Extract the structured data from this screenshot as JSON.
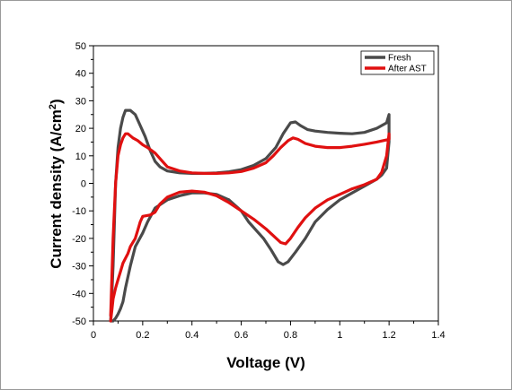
{
  "chart_data": {
    "type": "line",
    "title": "",
    "xlabel": "Voltage (V)",
    "ylabel_main": "Current density (A/cm",
    "ylabel_sup": "2",
    "ylabel_close": ")",
    "xlim": [
      0,
      1.4
    ],
    "ylim": [
      -50,
      50
    ],
    "x_ticks": [
      "0",
      "0.2",
      "0.4",
      "0.6",
      "0.8",
      "1",
      "1.2",
      "1.4"
    ],
    "x_tick_values": [
      0,
      0.2,
      0.4,
      0.6,
      0.8,
      1.0,
      1.2,
      1.4
    ],
    "y_ticks": [
      "50",
      "40",
      "30",
      "20",
      "10",
      "0",
      "-10",
      "-20",
      "-30",
      "-40",
      "-50"
    ],
    "y_tick_values": [
      50,
      40,
      30,
      20,
      10,
      0,
      -10,
      -20,
      -30,
      -40,
      -50
    ],
    "grid": false,
    "legend_position": "top-right",
    "series": [
      {
        "name": "Fresh",
        "color": "#4a4a4a",
        "x": [
          0.07,
          0.08,
          0.09,
          0.1,
          0.11,
          0.12,
          0.13,
          0.15,
          0.17,
          0.19,
          0.21,
          0.23,
          0.25,
          0.27,
          0.3,
          0.35,
          0.4,
          0.45,
          0.5,
          0.55,
          0.6,
          0.65,
          0.7,
          0.74,
          0.77,
          0.8,
          0.82,
          0.84,
          0.87,
          0.9,
          0.95,
          1.0,
          1.05,
          1.1,
          1.15,
          1.19,
          1.2,
          1.2,
          1.19,
          1.17,
          1.15,
          1.1,
          1.05,
          1.0,
          0.95,
          0.9,
          0.86,
          0.82,
          0.79,
          0.77,
          0.75,
          0.72,
          0.69,
          0.66,
          0.63,
          0.6,
          0.55,
          0.5,
          0.45,
          0.4,
          0.35,
          0.3,
          0.25,
          0.22,
          0.2,
          0.17,
          0.15,
          0.13,
          0.12,
          0.11,
          0.1,
          0.09,
          0.08,
          0.075,
          0.07
        ],
        "y": [
          -50,
          -30,
          0,
          13,
          20,
          24,
          26.5,
          26.5,
          25,
          21,
          17,
          12,
          8,
          6,
          4.5,
          3.8,
          3.6,
          3.6,
          3.8,
          4.2,
          5,
          6.5,
          9,
          13,
          18,
          22,
          22.3,
          21,
          19.5,
          19,
          18.5,
          18.2,
          18,
          18.5,
          20,
          22,
          25,
          15,
          5.5,
          3,
          1.5,
          -1,
          -3.5,
          -6,
          -9.5,
          -14,
          -20,
          -25,
          -28.5,
          -29.5,
          -28.5,
          -24,
          -20,
          -17,
          -14,
          -10,
          -6,
          -4,
          -3.5,
          -3.5,
          -4.5,
          -6,
          -9,
          -14,
          -18,
          -23,
          -30,
          -38,
          -43,
          -45.5,
          -47.5,
          -49,
          -50,
          -51,
          -52
        ]
      },
      {
        "name": "After AST",
        "color": "#e01010",
        "x": [
          0.07,
          0.08,
          0.09,
          0.1,
          0.11,
          0.12,
          0.13,
          0.14,
          0.16,
          0.18,
          0.2,
          0.22,
          0.25,
          0.28,
          0.3,
          0.35,
          0.4,
          0.45,
          0.5,
          0.55,
          0.6,
          0.65,
          0.7,
          0.73,
          0.76,
          0.79,
          0.81,
          0.83,
          0.86,
          0.9,
          0.95,
          1.0,
          1.05,
          1.1,
          1.15,
          1.2,
          1.2,
          1.19,
          1.17,
          1.15,
          1.1,
          1.05,
          1.0,
          0.95,
          0.9,
          0.86,
          0.83,
          0.8,
          0.78,
          0.76,
          0.73,
          0.7,
          0.65,
          0.6,
          0.55,
          0.5,
          0.45,
          0.4,
          0.35,
          0.3,
          0.27,
          0.25,
          0.23,
          0.2,
          0.19,
          0.18,
          0.17,
          0.15,
          0.14,
          0.12,
          0.11,
          0.1,
          0.09,
          0.08,
          0.075,
          0.07
        ],
        "y": [
          -48,
          -20,
          0,
          10,
          14,
          16.5,
          18,
          18,
          16.5,
          15.5,
          14,
          13,
          11,
          8,
          6,
          4.5,
          3.8,
          3.6,
          3.6,
          3.8,
          4.3,
          5.5,
          7.5,
          10,
          13,
          15.5,
          16.5,
          16,
          14.5,
          13.5,
          13,
          13,
          13.5,
          14.2,
          15,
          16,
          18,
          10,
          4,
          1.5,
          -0.5,
          -2,
          -4,
          -6,
          -9,
          -12.5,
          -16,
          -20,
          -22,
          -21.5,
          -19,
          -16.5,
          -13,
          -10,
          -7,
          -4.5,
          -3.2,
          -2.8,
          -3.2,
          -5,
          -7.5,
          -10.5,
          -11.5,
          -12,
          -14,
          -17,
          -20,
          -23,
          -25.5,
          -29,
          -32,
          -35,
          -38,
          -42,
          -46,
          -50
        ]
      }
    ]
  }
}
